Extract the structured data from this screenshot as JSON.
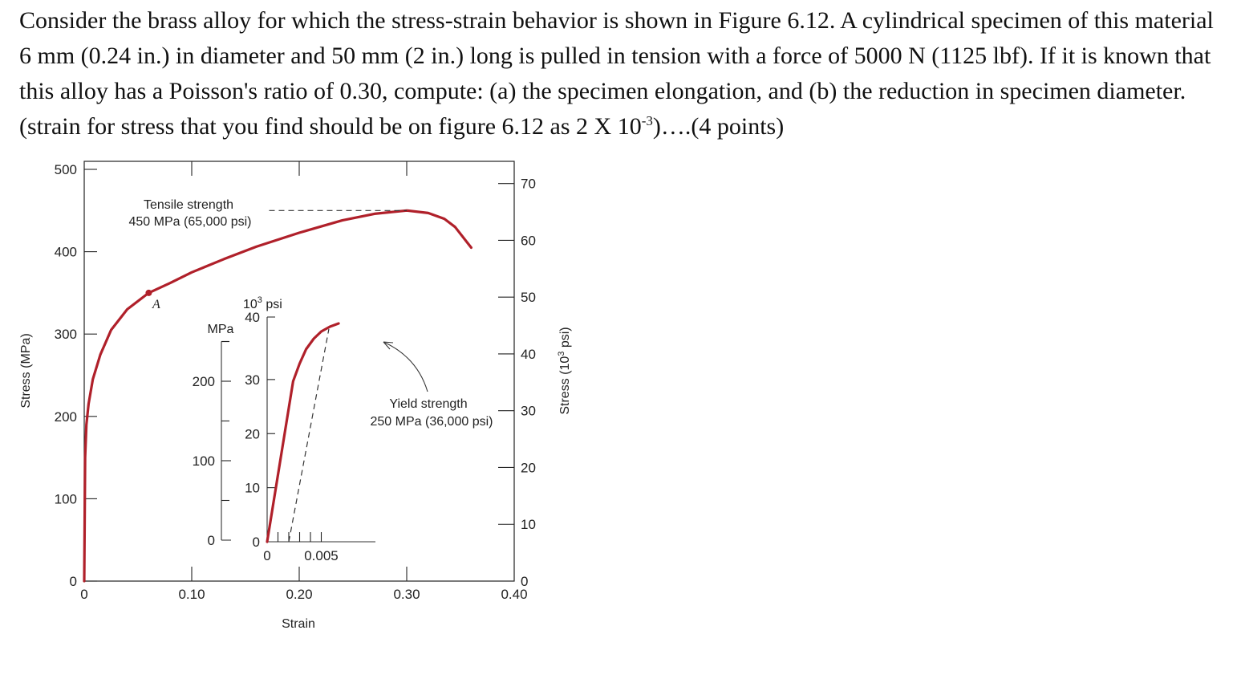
{
  "question": {
    "part1": "Consider the brass alloy for which the stress-strain behavior is shown in Figure 6.12.  A cylindrical specimen of this material 6 mm (0.24 in.) in diameter and 50 mm (2 in.) long is pulled in tension with a force of 5000 N (1125 lbf).  If it is known that this alloy has a Poisson's ratio of 0.30, compute:  (a) the specimen elongation, and (b) the reduction in specimen diameter. (strain for stress that you find should be on figure 6.12 as 2 X 10",
    "sup": "-3",
    "part2": ")….(4 points)"
  },
  "chart_data": [
    {
      "type": "line",
      "name_role": "main",
      "xlabel": "Strain",
      "ylabel": "Stress (MPa)",
      "y2label": "Stress (10³ psi)",
      "xlim": [
        0,
        0.4
      ],
      "ylim": [
        0,
        500
      ],
      "y2lim": [
        0,
        72.5
      ],
      "x_ticks": [
        "0",
        "0.10",
        "0.20",
        "0.30",
        "0.40"
      ],
      "x_tick_values": [
        0,
        0.1,
        0.2,
        0.3,
        0.4
      ],
      "y_ticks": [
        "0",
        "100",
        "200",
        "300",
        "400",
        "500"
      ],
      "y_tick_values": [
        0,
        100,
        200,
        300,
        400,
        500
      ],
      "y2_ticks": [
        "0",
        "10",
        "20",
        "30",
        "40",
        "50",
        "60",
        "70"
      ],
      "y2_tick_values": [
        0,
        10,
        20,
        30,
        40,
        50,
        60,
        70
      ],
      "series": [
        {
          "x": [
            0,
            0.0008,
            0.002,
            0.004,
            0.008,
            0.015,
            0.025,
            0.04,
            0.06,
            0.08,
            0.1,
            0.13,
            0.16,
            0.2,
            0.24,
            0.27,
            0.3,
            0.32,
            0.335,
            0.345,
            0.36
          ],
          "y": [
            0,
            150,
            190,
            215,
            245,
            275,
            305,
            330,
            350,
            362,
            375,
            391,
            406,
            423,
            438,
            446,
            450,
            447,
            440,
            430,
            405
          ]
        }
      ],
      "tensile_strength": {
        "x_end": 0.3,
        "y": 450
      },
      "point_A": {
        "x": 0.06,
        "y": 350,
        "label": "A"
      },
      "annotations": {
        "tensile_line1": "Tensile strength",
        "tensile_line2": "450 MPa (65,000 psi)"
      },
      "grid": false
    },
    {
      "type": "line",
      "name_role": "inset",
      "xlim": [
        0,
        0.01
      ],
      "ylim": [
        0,
        275
      ],
      "y2lim": [
        0,
        40
      ],
      "y_unit_label": "MPa",
      "y2_unit_label": "10³ psi",
      "x_ticks": [
        "0",
        "0.005"
      ],
      "x_tick_values": [
        0,
        0.005
      ],
      "x_minor_ticks": [
        0.001,
        0.002,
        0.003,
        0.004,
        0.005
      ],
      "y_ticks": [
        "0",
        "100",
        "200"
      ],
      "y_tick_values": [
        0,
        100,
        200
      ],
      "y_minor_ticks": [
        50,
        150,
        250
      ],
      "y2_ticks": [
        "0",
        "10",
        "20",
        "30",
        "40"
      ],
      "y2_tick_values": [
        0,
        10,
        20,
        30,
        40
      ],
      "series": [
        {
          "x": [
            0,
            0.0024,
            0.003,
            0.0036,
            0.0043,
            0.005,
            0.0058,
            0.0066
          ],
          "y": [
            0,
            200,
            222,
            240,
            253,
            262,
            268,
            272
          ]
        }
      ],
      "offset_line": {
        "x": [
          0.002,
          0.0057
        ],
        "y": [
          0,
          265
        ]
      },
      "annotations": {
        "yield_line1": "Yield strength",
        "yield_line2": "250 MPa (36,000 psi)"
      }
    }
  ],
  "colors": {
    "curve": "#b0202a",
    "axes": "#222222"
  }
}
